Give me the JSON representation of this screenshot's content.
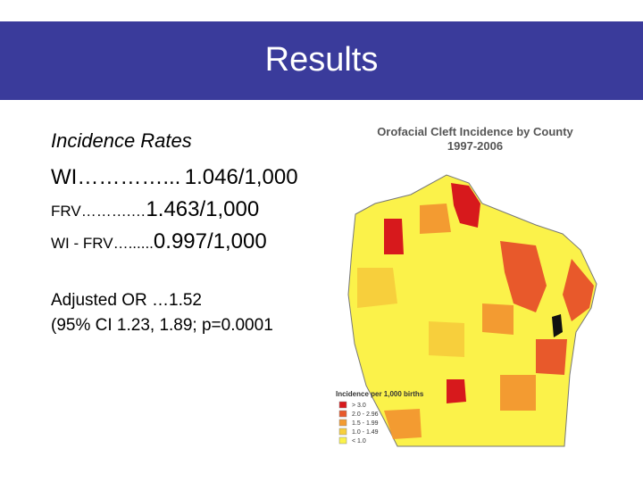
{
  "header": {
    "title": "Results"
  },
  "body": {
    "heading": "Incidence Rates",
    "rates": [
      {
        "label": "WI…………...",
        "value": "1.046/1,000"
      },
      {
        "label": "FRV……….…",
        "value": "1.463/1,000"
      },
      {
        "label": "WI - FRV…......",
        "value": "0.997/1,000"
      }
    ],
    "adjusted": [
      "Adjusted OR …1.52",
      "(95% CI 1.23, 1.89; p=0.0001"
    ]
  },
  "map": {
    "title": "Orofacial Cleft Incidence by County",
    "subtitle": "1997-2006",
    "legend_title": "Incidence per 1,000 births",
    "legend": [
      {
        "label": "> 3.0",
        "color": "#d7191c"
      },
      {
        "label": "2.0 - 2.96",
        "color": "#e8592b"
      },
      {
        "label": "1.5 - 1.99",
        "color": "#f39b31"
      },
      {
        "label": "1.0 - 1.49",
        "color": "#f7cf3c"
      },
      {
        "label": "< 1.0",
        "color": "#fbf24a"
      }
    ]
  }
}
